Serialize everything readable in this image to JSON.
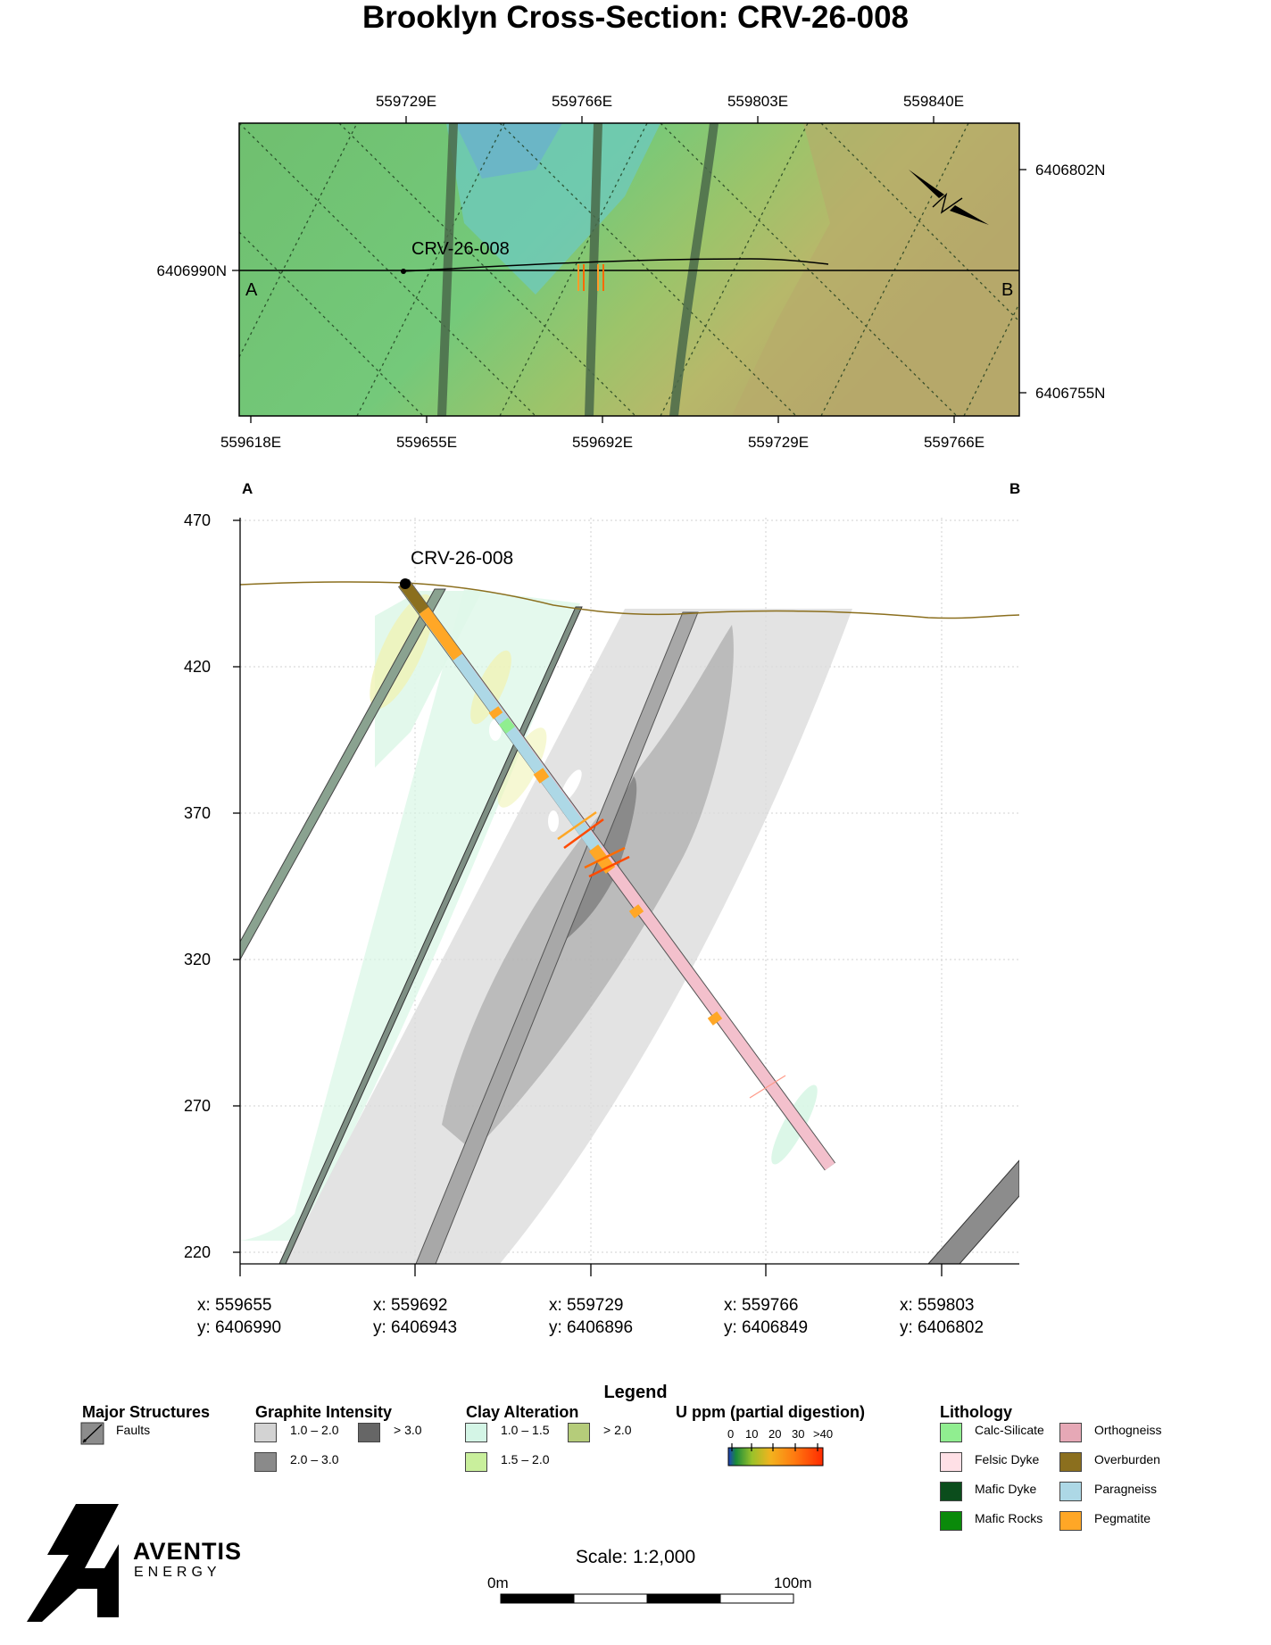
{
  "title": "Brooklyn Cross-Section: CRV-26-008",
  "plan_map": {
    "top_ticks": [
      "559729E",
      "559766E",
      "559803E",
      "559840E"
    ],
    "bottom_ticks": [
      "559618E",
      "559655E",
      "559692E",
      "559729E",
      "559766E"
    ],
    "left_ticks": [
      "6406990N"
    ],
    "right_ticks": [
      "6406802N",
      "6406755N"
    ],
    "hole_label": "CRV-26-008",
    "section_start": "A",
    "section_end": "B"
  },
  "section": {
    "end_a": "A",
    "end_b": "B",
    "y_ticks": [
      "470",
      "420",
      "370",
      "320",
      "270",
      "220"
    ],
    "hole_label": "CRV-26-008",
    "x_coords": [
      {
        "x": "x: 559655",
        "y": "y: 6406990"
      },
      {
        "x": "x: 559692",
        "y": "y: 6406943"
      },
      {
        "x": "x: 559729",
        "y": "y: 6406896"
      },
      {
        "x": "x: 559766",
        "y": "y: 6406849"
      },
      {
        "x": "x: 559803",
        "y": "y: 6406802"
      }
    ]
  },
  "legend": {
    "title": "Legend",
    "structures": {
      "heading": "Major Structures",
      "items": [
        "Faults"
      ]
    },
    "graphite": {
      "heading": "Graphite Intensity",
      "items": [
        {
          "label": "1.0 – 2.0",
          "color": "#d3d3d3"
        },
        {
          "label": "> 3.0",
          "color": "#666666"
        },
        {
          "label": "2.0 – 3.0",
          "color": "#8a8a8a"
        }
      ]
    },
    "clay": {
      "heading": "Clay Alteration",
      "items": [
        {
          "label": "1.0 – 1.5",
          "color": "#d4f5e6"
        },
        {
          "label": "> 2.0",
          "color": "#b5cc7a"
        },
        {
          "label": "1.5 – 2.0",
          "color": "#c9ef9c"
        }
      ]
    },
    "uranium": {
      "heading": "U ppm (partial digestion)",
      "ticks": [
        "0",
        "10",
        "20",
        "30",
        ">40"
      ]
    },
    "lithology": {
      "heading": "Lithology",
      "items": [
        {
          "label": "Calc-Silicate",
          "color": "#90ee90"
        },
        {
          "label": "Orthogneiss",
          "color": "#e6a8b6"
        },
        {
          "label": "Felsic Dyke",
          "color": "#ffe0e6"
        },
        {
          "label": "Overburden",
          "color": "#8b6f1e"
        },
        {
          "label": "Mafic Dyke",
          "color": "#0b4d1c"
        },
        {
          "label": "Paragneiss",
          "color": "#add8e6"
        },
        {
          "label": "Mafic Rocks",
          "color": "#0a8a0a"
        },
        {
          "label": "Pegmatite",
          "color": "#ffa726"
        }
      ]
    }
  },
  "logo": {
    "line1": "AVENTIS",
    "line2": "ENERGY"
  },
  "scale": {
    "text": "Scale: 1:2,000",
    "start": "0m",
    "end": "100m"
  }
}
